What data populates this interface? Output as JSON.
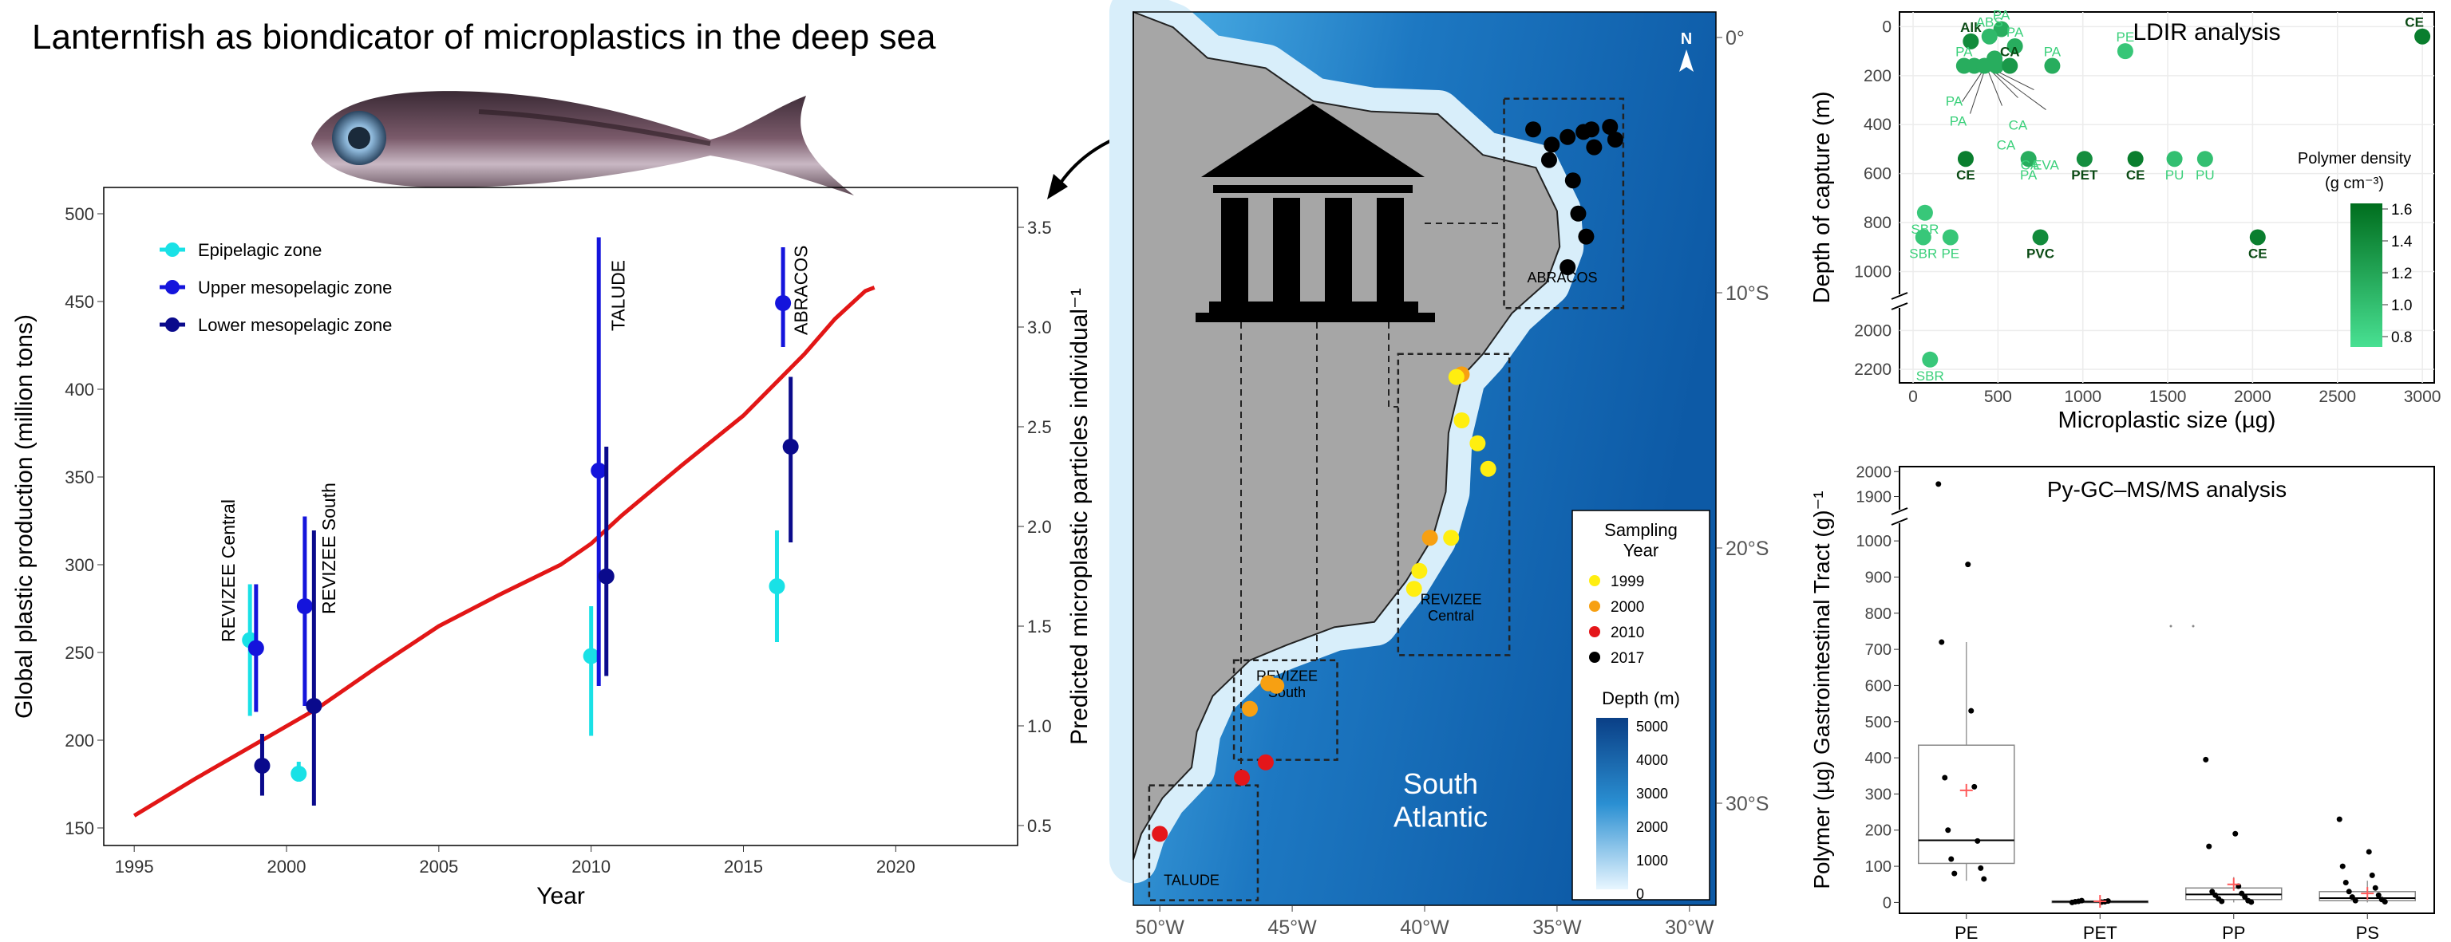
{
  "title": "Lanternfish as biondicator of microplastics in the deep sea",
  "colors": {
    "epipelagic": "#19e1e6",
    "upper_meso": "#1414dc",
    "lower_meso": "#0a0a8c",
    "production_line": "#e21616",
    "ocean": "#1f7fc4",
    "land": "#a0a0a0",
    "y1999": "#ffee10",
    "y2000": "#f7a012",
    "y2010": "#e4161a",
    "y2017": "#000000",
    "polymer_low": "#48e092",
    "polymer_high": "#006e1e",
    "mean_marker": "#ff5a5a"
  },
  "icons": [
    "lanternfish-photo",
    "museum-icon",
    "north-arrow-icon"
  ],
  "chart_data": [
    {
      "type": "line",
      "xlabel": "Year",
      "ylabel": "Global plastic production (million tons)",
      "ylabel_right": "Predicted microplastic particles individual⁻¹",
      "xlim": [
        1994,
        2024
      ],
      "ylim": [
        140,
        515
      ],
      "ylim_right": [
        0.4,
        3.7
      ],
      "xticks": [
        "1995",
        "2000",
        "2005",
        "2010",
        "2015",
        "2020"
      ],
      "yticks": [
        "150",
        "200",
        "250",
        "300",
        "350",
        "400",
        "450",
        "500"
      ],
      "yticks_right": [
        "0.5",
        "1.0",
        "1.5",
        "2.0",
        "2.5",
        "3.0",
        "3.5"
      ],
      "grid": false,
      "legend_position": "top-left",
      "legend": [
        {
          "name": "Epipelagic zone",
          "color_key": "epipelagic"
        },
        {
          "name": "Upper mesopelagic zone",
          "color_key": "upper_meso"
        },
        {
          "name": "Lower mesopelagic zone",
          "color_key": "lower_meso"
        }
      ],
      "production_curve": {
        "x": [
          1995,
          1997,
          1999,
          2001,
          2003,
          2005,
          2007,
          2009,
          2010,
          2011,
          2013,
          2015,
          2017,
          2018,
          2019,
          2019.3
        ],
        "y": [
          157,
          178,
          198,
          218,
          242,
          265,
          283,
          300,
          312,
          328,
          357,
          385,
          420,
          440,
          456,
          458
        ]
      },
      "points": [
        {
          "series": "Epipelagic zone",
          "x": 1998.8,
          "y": 1.43,
          "lo": 1.05,
          "hi": 1.71
        },
        {
          "series": "Upper mesopelagic zone",
          "x": 1999.0,
          "y": 1.39,
          "lo": 1.07,
          "hi": 1.71
        },
        {
          "series": "Lower mesopelagic zone",
          "x": 1999.2,
          "y": 0.8,
          "lo": 0.65,
          "hi": 0.96
        },
        {
          "series": "Epipelagic zone",
          "x": 2000.4,
          "y": 0.76,
          "lo": 0.72,
          "hi": 0.82
        },
        {
          "series": "Upper mesopelagic zone",
          "x": 2000.6,
          "y": 1.6,
          "lo": 1.1,
          "hi": 2.05
        },
        {
          "series": "Lower mesopelagic zone",
          "x": 2000.9,
          "y": 1.1,
          "lo": 0.6,
          "hi": 1.98
        },
        {
          "series": "Epipelagic zone",
          "x": 2010.0,
          "y": 1.35,
          "lo": 0.95,
          "hi": 1.6
        },
        {
          "series": "Upper mesopelagic zone",
          "x": 2010.25,
          "y": 2.28,
          "lo": 1.2,
          "hi": 3.45
        },
        {
          "series": "Lower mesopelagic zone",
          "x": 2010.5,
          "y": 1.75,
          "lo": 1.25,
          "hi": 2.4
        },
        {
          "series": "Epipelagic zone",
          "x": 2016.1,
          "y": 1.7,
          "lo": 1.42,
          "hi": 1.98
        },
        {
          "series": "Upper mesopelagic zone",
          "x": 2016.3,
          "y": 3.12,
          "lo": 2.9,
          "hi": 3.4
        },
        {
          "series": "Lower mesopelagic zone",
          "x": 2016.55,
          "y": 2.4,
          "lo": 1.92,
          "hi": 2.75
        }
      ],
      "annotations": [
        {
          "text": "REVIZEE Central",
          "x": 1998.3
        },
        {
          "text": "REVIZEE South",
          "x": 2001.6
        },
        {
          "text": "TALUDE",
          "x": 2011.1
        },
        {
          "text": "ABRACOS",
          "x": 2017.1
        }
      ]
    },
    {
      "type": "scatter",
      "subtype": "map",
      "xlim": [
        -51,
        -29
      ],
      "ylim": [
        -34,
        1
      ],
      "xticks": [
        "50°W",
        "45°W",
        "40°W",
        "35°W",
        "30°W"
      ],
      "yticks": [
        "0°",
        "10°S",
        "20°S",
        "30°S"
      ],
      "north_label": "N",
      "ocean_label": "South\nAtlantic",
      "legend_position": "bottom-right",
      "sampling_legend": {
        "title": "Sampling\nYear",
        "items": [
          {
            "label": "1999",
            "color_key": "y1999"
          },
          {
            "label": "2000",
            "color_key": "y2000"
          },
          {
            "label": "2010",
            "color_key": "y2010"
          },
          {
            "label": "2017",
            "color_key": "y2017"
          }
        ]
      },
      "depth_legend": {
        "title": "Depth (m)",
        "ticks": [
          "5000",
          "4000",
          "3000",
          "2000",
          "1000",
          "0"
        ]
      },
      "regions": [
        {
          "label": "ABRACOS",
          "lon": [
            -37,
            -32.5
          ],
          "lat": [
            -10.6,
            -2.4
          ]
        },
        {
          "label": "REVIZEE\nCentral",
          "lon": [
            -41,
            -36.8
          ],
          "lat": [
            -24.2,
            -12.4
          ]
        },
        {
          "label": "REVIZEE\nSouth",
          "lon": [
            -47.2,
            -43.3
          ],
          "lat": [
            -28.3,
            -24.4
          ]
        },
        {
          "label": "TALUDE",
          "lon": [
            -50.4,
            -46.3
          ],
          "lat": [
            -33.8,
            -29.3
          ]
        }
      ],
      "stations": [
        {
          "lon": -35.9,
          "lat": -3.6,
          "year": "2017"
        },
        {
          "lon": -35.2,
          "lat": -4.2,
          "year": "2017"
        },
        {
          "lon": -35.3,
          "lat": -4.8,
          "year": "2017"
        },
        {
          "lon": -34.6,
          "lat": -3.9,
          "year": "2017"
        },
        {
          "lon": -34.0,
          "lat": -3.7,
          "year": "2017"
        },
        {
          "lon": -33.6,
          "lat": -4.3,
          "year": "2017"
        },
        {
          "lon": -33.7,
          "lat": -3.6,
          "year": "2017"
        },
        {
          "lon": -33.0,
          "lat": -3.5,
          "year": "2017"
        },
        {
          "lon": -32.8,
          "lat": -4.0,
          "year": "2017"
        },
        {
          "lon": -34.4,
          "lat": -5.6,
          "year": "2017"
        },
        {
          "lon": -34.2,
          "lat": -6.9,
          "year": "2017"
        },
        {
          "lon": -33.9,
          "lat": -7.8,
          "year": "2017"
        },
        {
          "lon": -34.6,
          "lat": -9.0,
          "year": "2017"
        },
        {
          "lon": -38.6,
          "lat": -13.2,
          "year": "2000"
        },
        {
          "lon": -38.8,
          "lat": -13.3,
          "year": "1999"
        },
        {
          "lon": -38.6,
          "lat": -15.0,
          "year": "1999"
        },
        {
          "lon": -38.0,
          "lat": -15.9,
          "year": "1999"
        },
        {
          "lon": -37.6,
          "lat": -16.9,
          "year": "1999"
        },
        {
          "lon": -39.8,
          "lat": -19.6,
          "year": "2000"
        },
        {
          "lon": -39.0,
          "lat": -19.6,
          "year": "1999"
        },
        {
          "lon": -40.2,
          "lat": -20.9,
          "year": "1999"
        },
        {
          "lon": -40.4,
          "lat": -21.6,
          "year": "1999"
        },
        {
          "lon": -45.9,
          "lat": -25.3,
          "year": "2000"
        },
        {
          "lon": -45.6,
          "lat": -25.4,
          "year": "2000"
        },
        {
          "lon": -46.6,
          "lat": -26.3,
          "year": "2000"
        },
        {
          "lon": -46.0,
          "lat": -28.4,
          "year": "2010"
        },
        {
          "lon": -46.9,
          "lat": -29.0,
          "year": "2010"
        },
        {
          "lon": -50.0,
          "lat": -31.2,
          "year": "2010"
        }
      ]
    },
    {
      "type": "scatter",
      "title": "LDIR analysis",
      "xlabel": "Microplastic size  (µg)",
      "ylabel": "Depth of capture (m)",
      "xlim": [
        -80,
        3070
      ],
      "xticks": [
        "0",
        "500",
        "1000",
        "1500",
        "2000",
        "2500",
        "3000"
      ],
      "yticks_upper": [
        "0",
        "200",
        "400",
        "600",
        "800",
        "1000"
      ],
      "yticks_lower": [
        "2000",
        "2200"
      ],
      "ylim_upper": [
        -60,
        1080
      ],
      "ylim_lower": [
        1900,
        2270
      ],
      "grid": true,
      "colorbar": {
        "title": "Polymer density",
        "unit": "(g cm⁻³)",
        "ticks": [
          "1.6",
          "1.4",
          "1.2",
          "1.0",
          "0.8"
        ],
        "range": [
          0.75,
          1.62
        ]
      },
      "points": [
        {
          "x": 3000,
          "y": 40,
          "label": "CE",
          "density": 1.5
        },
        {
          "x": 1250,
          "y": 100,
          "label": "PE",
          "density": 0.95
        },
        {
          "x": 520,
          "y": 10,
          "label": "PA",
          "density": 1.14
        },
        {
          "x": 340,
          "y": 60,
          "label": "Alk",
          "density": 1.4
        },
        {
          "x": 450,
          "y": 40,
          "label": "ABS",
          "density": 1.05
        },
        {
          "x": 600,
          "y": 80,
          "label": "PA",
          "density": 1.14
        },
        {
          "x": 480,
          "y": 130,
          "label": "",
          "density": 1.14
        },
        {
          "x": 300,
          "y": 160,
          "label": "PA",
          "density": 1.14
        },
        {
          "x": 360,
          "y": 160,
          "label": "",
          "density": 1.14
        },
        {
          "x": 420,
          "y": 160,
          "label": "",
          "density": 1.14
        },
        {
          "x": 490,
          "y": 160,
          "label": "",
          "density": 1.14
        },
        {
          "x": 570,
          "y": 160,
          "label": "CA",
          "density": 1.3
        },
        {
          "x": 820,
          "y": 160,
          "label": "PA",
          "density": 1.14
        },
        {
          "x": 310,
          "y": 540,
          "label": "CE",
          "density": 1.5
        },
        {
          "x": 680,
          "y": 540,
          "label": "PA",
          "density": 1.14
        },
        {
          "x": 1010,
          "y": 540,
          "label": "PET",
          "density": 1.38
        },
        {
          "x": 1310,
          "y": 540,
          "label": "CE",
          "density": 1.5
        },
        {
          "x": 1540,
          "y": 540,
          "label": "PU",
          "density": 1.0
        },
        {
          "x": 1720,
          "y": 540,
          "label": "PU",
          "density": 1.0
        },
        {
          "x": 70,
          "y": 760,
          "label": "SBR",
          "density": 0.94
        },
        {
          "x": 60,
          "y": 860,
          "label": "SBR",
          "density": 0.94
        },
        {
          "x": 220,
          "y": 860,
          "label": "PE",
          "density": 0.95
        },
        {
          "x": 750,
          "y": 860,
          "label": "PVC",
          "density": 1.4
        },
        {
          "x": 2030,
          "y": 860,
          "label": "CE",
          "density": 1.5
        },
        {
          "x": 100,
          "y": 2150,
          "label": "SBR",
          "density": 0.94
        }
      ],
      "cluster_labels": [
        "PA",
        "PA",
        "CA",
        "CA",
        "CA",
        "EVA"
      ]
    },
    {
      "type": "box",
      "title": "Py-GC–MS/MS analysis",
      "ylabel": "Polymer (µg) Gastrointestinal Tract (g)⁻¹",
      "categories": [
        "PE",
        "PET",
        "PP",
        "PS"
      ],
      "yticks_lower": [
        "0",
        "100",
        "200",
        "300",
        "400",
        "500",
        "600",
        "700",
        "800",
        "900",
        "1000"
      ],
      "yticks_upper": [
        "1900",
        "2000"
      ],
      "ylim_lower": [
        -30,
        1040
      ],
      "ylim_upper": [
        1860,
        2020
      ],
      "grid": false,
      "boxes": [
        {
          "category": "PE",
          "q1": 108,
          "median": 172,
          "q3": 435,
          "whisker_lo": 60,
          "whisker_hi": 720,
          "mean": 310,
          "points": [
            1950,
            935,
            720,
            530,
            345,
            320,
            200,
            170,
            120,
            95,
            80,
            65
          ]
        },
        {
          "category": "PET",
          "q1": 0,
          "median": 2,
          "q3": 4,
          "whisker_lo": 0,
          "whisker_hi": 6,
          "mean": 3,
          "points": [
            0,
            1,
            2,
            2,
            3,
            4,
            5
          ]
        },
        {
          "category": "PP",
          "q1": 8,
          "median": 22,
          "q3": 40,
          "whisker_lo": 0,
          "whisker_hi": 70,
          "mean": 50,
          "points": [
            395,
            190,
            155,
            45,
            30,
            25,
            20,
            15,
            10,
            5,
            3,
            1
          ]
        },
        {
          "category": "PS",
          "q1": 5,
          "median": 12,
          "q3": 30,
          "whisker_lo": 0,
          "whisker_hi": 60,
          "mean": 25,
          "points": [
            230,
            140,
            100,
            75,
            55,
            40,
            30,
            20,
            15,
            8,
            5,
            2
          ]
        }
      ]
    }
  ]
}
